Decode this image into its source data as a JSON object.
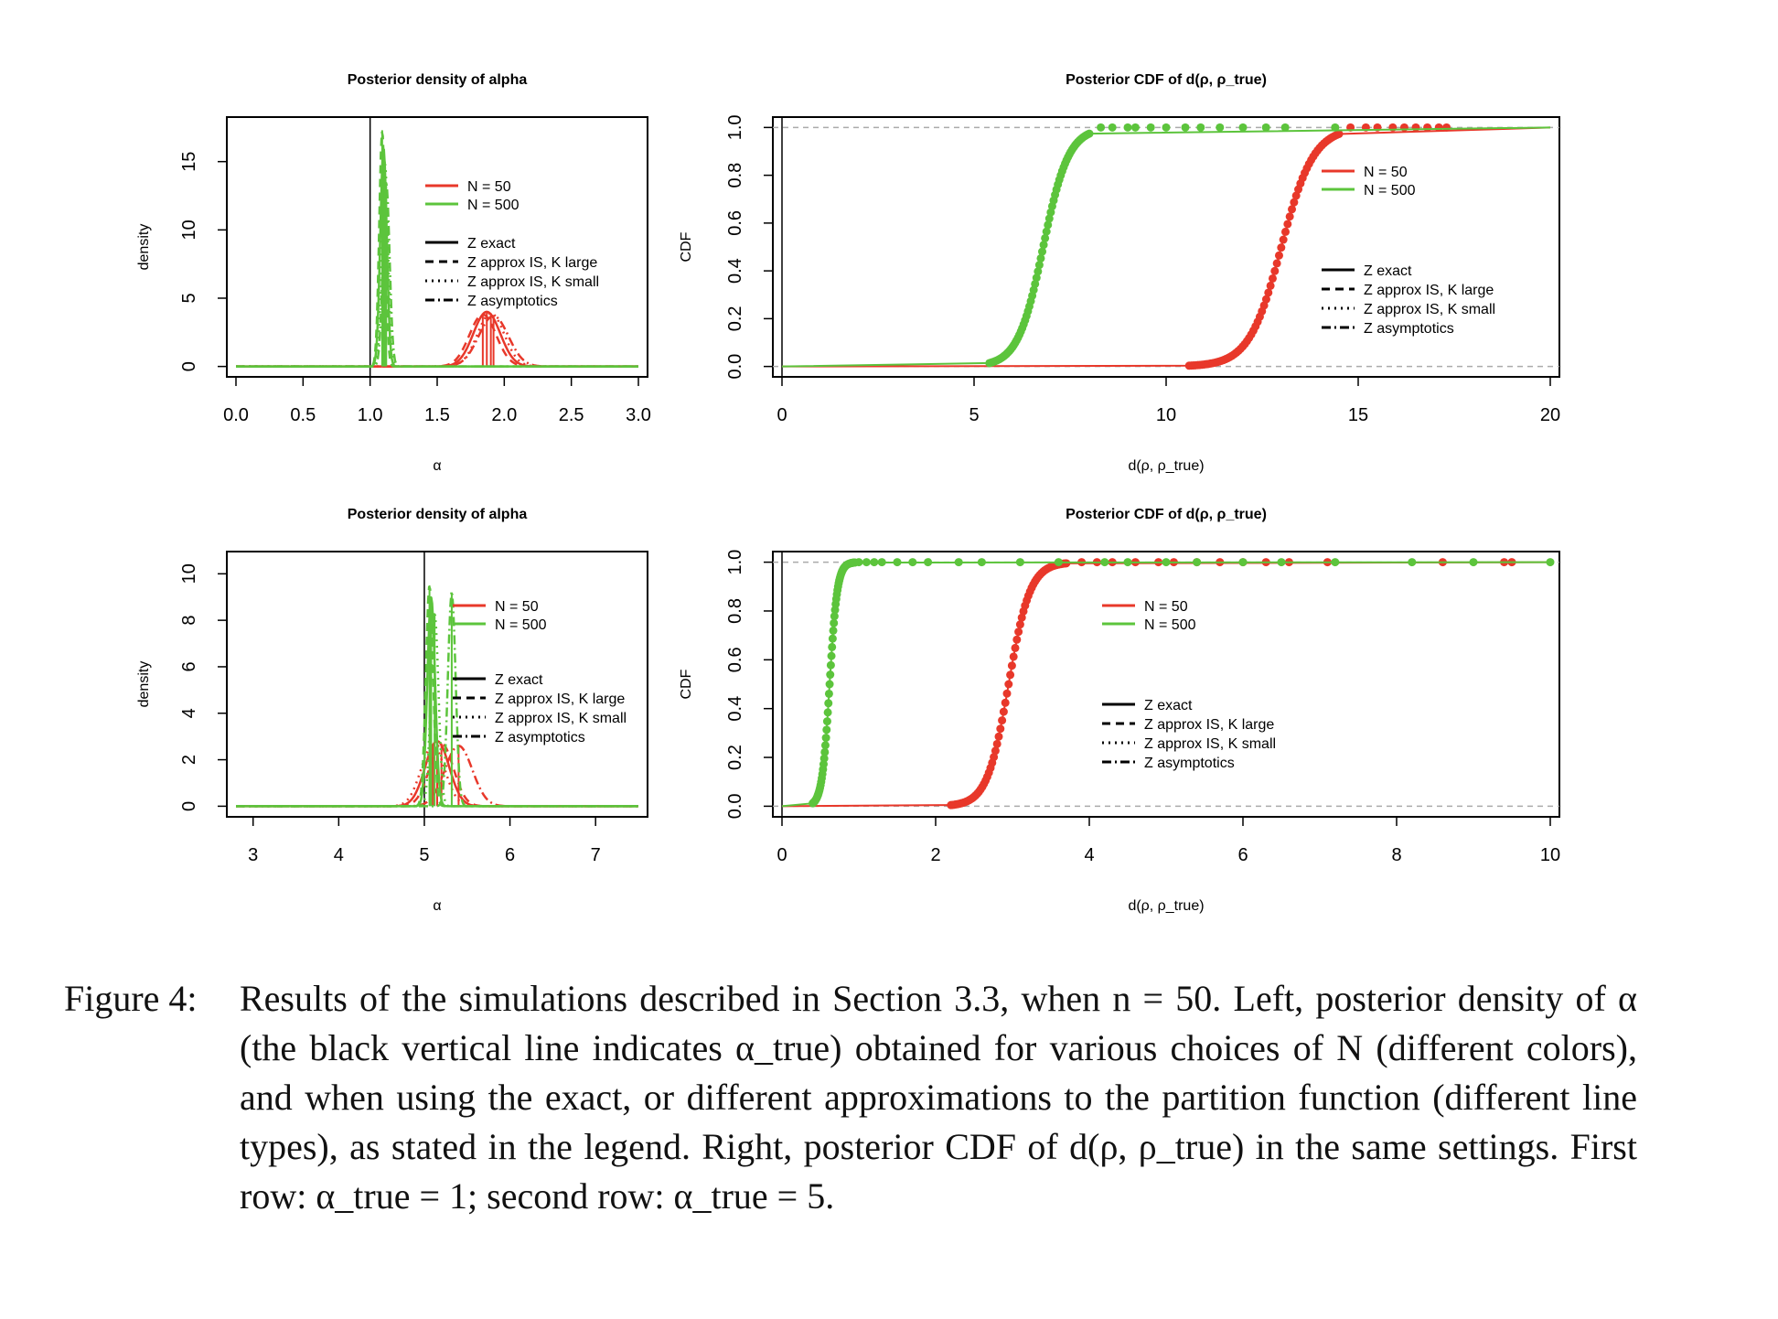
{
  "figure_caption": {
    "label": "Figure 4:",
    "text": "Results of the simulations described in Section 3.3, when n = 50. Left, posterior density of α (the black vertical line indicates α_true) obtained for various choices of N (different colors), and when using the exact, or different approximations to the partition function (different line types), as stated in the legend. Right, posterior CDF of d(ρ, ρ_true) in the same settings. First row: α_true = 1; second row: α_true = 5."
  },
  "colors": {
    "n50": "#e8382a",
    "n500": "#5cc43c",
    "ref": "#000000",
    "grid": "#aaaaaa"
  },
  "legend": {
    "colors": [
      "N = 50",
      "N = 500"
    ],
    "linetypes": [
      "Z exact",
      "Z approx IS, K large",
      "Z approx IS, K small",
      "Z asymptotics"
    ]
  },
  "chart_data": [
    {
      "type": "line",
      "title": "Posterior density of alpha",
      "xlabel": "α",
      "ylabel": "density",
      "xlim": [
        0.0,
        3.0
      ],
      "ylim": [
        0,
        17.5
      ],
      "xticks": [
        "0.0",
        "0.5",
        "1.0",
        "1.5",
        "2.0",
        "2.5",
        "3.0"
      ],
      "yticks": [
        "0",
        "5",
        "10",
        "15"
      ],
      "reference_line_x": 1.0,
      "series": [
        {
          "name": "N = 50",
          "linetype": "Z exact",
          "peak": 1.87,
          "sd": 0.1,
          "height": 4.0
        },
        {
          "name": "N = 50",
          "linetype": "Z approx IS, K large",
          "peak": 1.84,
          "sd": 0.1,
          "height": 3.8
        },
        {
          "name": "N = 50",
          "linetype": "Z approx IS, K small",
          "peak": 1.9,
          "sd": 0.1,
          "height": 3.9
        },
        {
          "name": "N = 50",
          "linetype": "Z asymptotics",
          "peak": 1.92,
          "sd": 0.11,
          "height": 3.7
        },
        {
          "name": "N = 500",
          "linetype": "Z exact",
          "peak": 1.1,
          "sd": 0.024,
          "height": 16.0
        },
        {
          "name": "N = 500",
          "linetype": "Z approx IS, K large",
          "peak": 1.09,
          "sd": 0.022,
          "height": 17.3
        },
        {
          "name": "N = 500",
          "linetype": "Z approx IS, K small",
          "peak": 1.11,
          "sd": 0.023,
          "height": 15.0
        },
        {
          "name": "N = 500",
          "linetype": "Z asymptotics",
          "peak": 1.12,
          "sd": 0.025,
          "height": 13.5
        }
      ]
    },
    {
      "type": "line",
      "title": "Posterior CDF of d(ρ, ρ_true)",
      "xlabel": "d(ρ, ρ_true)",
      "ylabel": "CDF",
      "xlim": [
        0,
        20
      ],
      "ylim": [
        0.0,
        1.0
      ],
      "xticks": [
        "0",
        "5",
        "10",
        "15",
        "20"
      ],
      "yticks": [
        "0.0",
        "0.2",
        "0.4",
        "0.6",
        "0.8",
        "1.0"
      ],
      "reference_line_x": 0,
      "series": [
        {
          "name": "N = 50",
          "center": 13.0,
          "scale": 0.42,
          "start": 10.6,
          "end": 14.5,
          "outliers": [
            14.8,
            15.2,
            15.5,
            15.9,
            16.2,
            16.5,
            16.8,
            17.1,
            17.3
          ]
        },
        {
          "name": "N = 500",
          "center": 6.8,
          "scale": 0.33,
          "start": 5.4,
          "end": 8.0,
          "outliers": [
            8.3,
            8.6,
            9.0,
            9.2,
            9.6,
            10.0,
            10.5,
            10.9,
            11.4,
            12.0,
            12.6,
            13.1,
            14.4
          ]
        }
      ]
    },
    {
      "type": "line",
      "title": "Posterior density of alpha",
      "xlabel": "α",
      "ylabel": "density",
      "xlim": [
        2.8,
        7.5
      ],
      "ylim": [
        0,
        10.5
      ],
      "xticks": [
        "3",
        "4",
        "5",
        "6",
        "7"
      ],
      "yticks": [
        "0",
        "2",
        "4",
        "6",
        "8",
        "10"
      ],
      "reference_line_x": 5.0,
      "series": [
        {
          "name": "N = 50",
          "linetype": "Z exact",
          "peak": 5.15,
          "sd": 0.14,
          "height": 2.8
        },
        {
          "name": "N = 50",
          "linetype": "Z approx IS, K large",
          "peak": 5.2,
          "sd": 0.14,
          "height": 2.7
        },
        {
          "name": "N = 50",
          "linetype": "Z approx IS, K small",
          "peak": 5.1,
          "sd": 0.14,
          "height": 2.6
        },
        {
          "name": "N = 50",
          "linetype": "Z asymptotics",
          "peak": 5.4,
          "sd": 0.16,
          "height": 2.6
        },
        {
          "name": "N = 500",
          "linetype": "Z exact",
          "peak": 5.08,
          "sd": 0.045,
          "height": 9.0
        },
        {
          "name": "N = 500",
          "linetype": "Z approx IS, K large",
          "peak": 5.06,
          "sd": 0.042,
          "height": 9.5
        },
        {
          "name": "N = 500",
          "linetype": "Z approx IS, K small",
          "peak": 5.12,
          "sd": 0.045,
          "height": 8.3
        },
        {
          "name": "N = 500",
          "linetype": "Z asymptotics",
          "peak": 5.32,
          "sd": 0.045,
          "height": 9.2
        }
      ]
    },
    {
      "type": "line",
      "title": "Posterior CDF of d(ρ, ρ_true)",
      "xlabel": "d(ρ, ρ_true)",
      "ylabel": "CDF",
      "xlim": [
        0,
        10
      ],
      "ylim": [
        0.0,
        1.0
      ],
      "xticks": [
        "0",
        "2",
        "4",
        "6",
        "8",
        "10"
      ],
      "yticks": [
        "0.0",
        "0.2",
        "0.4",
        "0.6",
        "0.8",
        "1.0"
      ],
      "reference_line_x": 0,
      "series": [
        {
          "name": "N = 50",
          "center": 2.95,
          "scale": 0.14,
          "start": 2.2,
          "end": 3.7,
          "outliers": [
            3.9,
            4.1,
            4.3,
            4.6,
            4.9,
            5.1,
            5.4,
            5.7,
            6.0,
            6.3,
            6.6,
            7.1,
            8.6,
            9.4,
            9.5
          ]
        },
        {
          "name": "N = 500",
          "center": 0.62,
          "scale": 0.05,
          "start": 0.4,
          "end": 0.95,
          "outliers": [
            1.0,
            1.1,
            1.2,
            1.3,
            1.5,
            1.7,
            1.9,
            2.3,
            2.6,
            3.1,
            3.6,
            4.2,
            4.5,
            5.0,
            5.4,
            6.0,
            6.5,
            7.2,
            8.2,
            9.0,
            10.0
          ]
        }
      ]
    }
  ]
}
